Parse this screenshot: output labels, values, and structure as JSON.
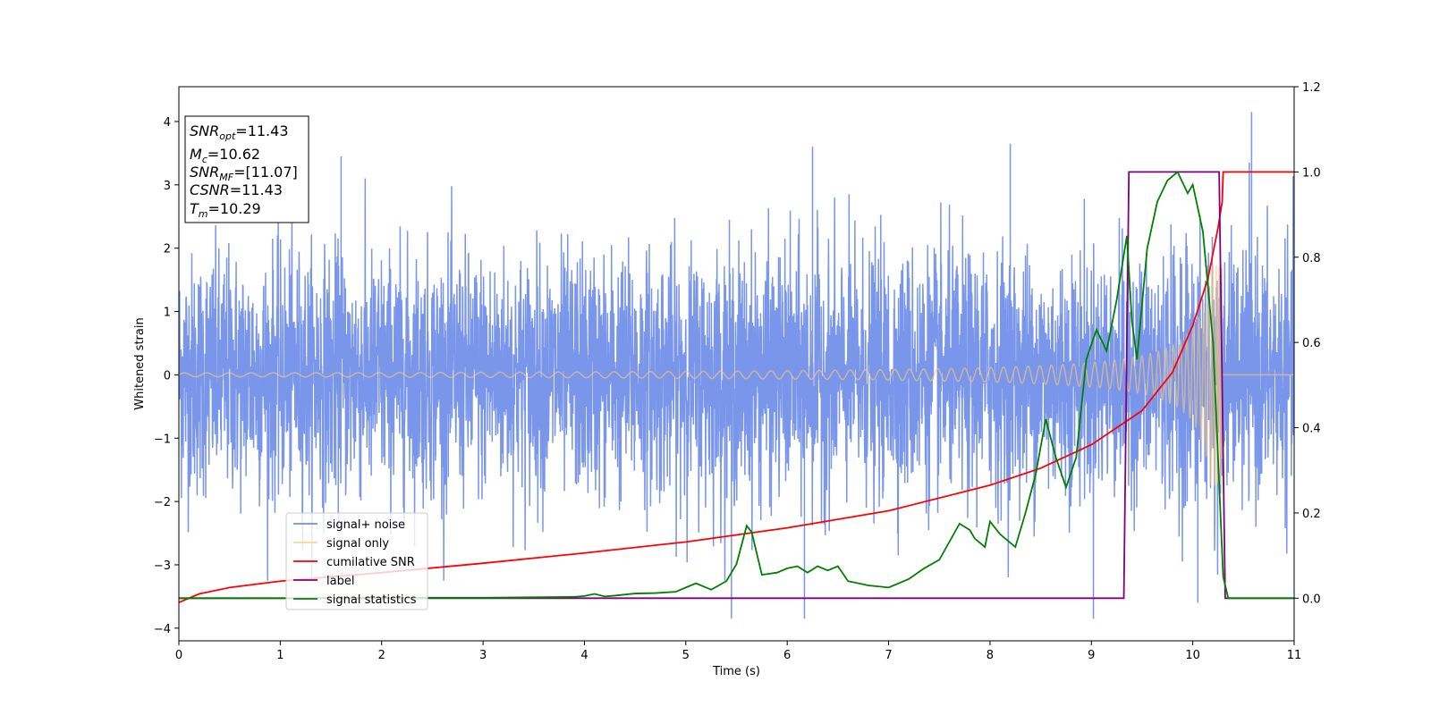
{
  "chart_data": {
    "type": "line",
    "xlabel": "Time (s)",
    "ylabel": "Whitened strain",
    "xlim": [
      0,
      11
    ],
    "ylim": [
      -4.2,
      4.55
    ],
    "y2lim": [
      -0.1,
      1.2
    ],
    "x_ticks": [
      "0",
      "1",
      "2",
      "3",
      "4",
      "5",
      "6",
      "7",
      "8",
      "9",
      "10",
      "11"
    ],
    "y_ticks": [
      {
        "value": 4,
        "label": "4"
      },
      {
        "value": 3,
        "label": "3"
      },
      {
        "value": 2,
        "label": "2"
      },
      {
        "value": 1,
        "label": "1"
      },
      {
        "value": 0,
        "label": "0"
      },
      {
        "value": -1,
        "label": "−1"
      },
      {
        "value": -2,
        "label": "−2"
      },
      {
        "value": -3,
        "label": "−3"
      },
      {
        "value": -4,
        "label": "−4"
      }
    ],
    "y2_ticks": [
      {
        "value": 1.2,
        "label": "1.2"
      },
      {
        "value": 1.0,
        "label": "1.0"
      },
      {
        "value": 0.8,
        "label": "0.8"
      },
      {
        "value": 0.6,
        "label": "0.6"
      },
      {
        "value": 0.4,
        "label": "0.4"
      },
      {
        "value": 0.2,
        "label": "0.2"
      },
      {
        "value": 0.0,
        "label": "0.0"
      }
    ],
    "annotation": [
      {
        "main": "SNR",
        "sub": "opt",
        "rest": "=11.43"
      },
      {
        "main": "M",
        "sub": "c",
        "rest": "=10.62"
      },
      {
        "main": "SNR",
        "sub": "MF",
        "rest": "=[11.07]"
      },
      {
        "main": "CSNR",
        "sub": "",
        "rest": "=11.43"
      },
      {
        "main": "T",
        "sub": "m",
        "rest": "=10.29"
      }
    ],
    "legend_position": "lower-left",
    "series": [
      {
        "name": "signal+ noise",
        "color": "#4169e1",
        "axis": "left",
        "description_stats": {
          "std": 0.95,
          "min": -3.85,
          "max": 4.15,
          "t_start": 0,
          "t_end": 11
        },
        "spikes": [
          {
            "x": 10.58,
            "y": 4.15
          },
          {
            "x": 10.05,
            "y": -3.6
          },
          {
            "x": 9.02,
            "y": -3.85
          },
          {
            "x": 5.45,
            "y": -3.85
          },
          {
            "x": 6.17,
            "y": -3.85
          },
          {
            "x": 8.2,
            "y": 3.65
          },
          {
            "x": 6.25,
            "y": 3.6
          },
          {
            "x": 1.6,
            "y": 3.45
          }
        ]
      },
      {
        "name": "signal only",
        "color": "#ffc870",
        "axis": "left",
        "chirp": {
          "t_merger": 10.29,
          "amp_start": 0.03,
          "amp_peak": 1.75,
          "freq_start": 12
        }
      },
      {
        "name": "cumilative SNR",
        "color": "#ff0000",
        "axis": "right",
        "points": [
          [
            0,
            -0.01
          ],
          [
            0.2,
            0.01
          ],
          [
            0.5,
            0.025
          ],
          [
            1,
            0.04
          ],
          [
            2,
            0.06
          ],
          [
            3,
            0.082
          ],
          [
            4,
            0.106
          ],
          [
            5,
            0.132
          ],
          [
            6,
            0.165
          ],
          [
            7,
            0.205
          ],
          [
            8,
            0.265
          ],
          [
            8.5,
            0.305
          ],
          [
            9,
            0.36
          ],
          [
            9.5,
            0.44
          ],
          [
            9.8,
            0.53
          ],
          [
            10,
            0.64
          ],
          [
            10.15,
            0.75
          ],
          [
            10.25,
            0.87
          ],
          [
            10.29,
            0.93
          ],
          [
            10.3,
            1.0
          ],
          [
            11,
            1.0
          ]
        ]
      },
      {
        "name": "label",
        "color": "#800080",
        "axis": "right",
        "points": [
          [
            0,
            0
          ],
          [
            9.32,
            0
          ],
          [
            9.37,
            1
          ],
          [
            10.26,
            1
          ],
          [
            10.32,
            0
          ],
          [
            11,
            0
          ]
        ]
      },
      {
        "name": "signal statistics",
        "color": "#008000",
        "axis": "right",
        "points": [
          [
            0,
            0
          ],
          [
            1,
            0
          ],
          [
            2,
            0.001
          ],
          [
            3,
            0.001
          ],
          [
            3.9,
            0.003
          ],
          [
            4.0,
            0.005
          ],
          [
            4.1,
            0.01
          ],
          [
            4.2,
            0.004
          ],
          [
            4.3,
            0.006
          ],
          [
            4.5,
            0.011
          ],
          [
            4.7,
            0.012
          ],
          [
            4.9,
            0.015
          ],
          [
            5.0,
            0.025
          ],
          [
            5.1,
            0.035
          ],
          [
            5.25,
            0.02
          ],
          [
            5.4,
            0.04
          ],
          [
            5.5,
            0.08
          ],
          [
            5.6,
            0.17
          ],
          [
            5.65,
            0.155
          ],
          [
            5.75,
            0.055
          ],
          [
            5.9,
            0.06
          ],
          [
            6.0,
            0.07
          ],
          [
            6.1,
            0.075
          ],
          [
            6.2,
            0.06
          ],
          [
            6.3,
            0.075
          ],
          [
            6.4,
            0.065
          ],
          [
            6.5,
            0.075
          ],
          [
            6.6,
            0.04
          ],
          [
            6.8,
            0.03
          ],
          [
            7.0,
            0.025
          ],
          [
            7.2,
            0.045
          ],
          [
            7.35,
            0.07
          ],
          [
            7.5,
            0.09
          ],
          [
            7.7,
            0.175
          ],
          [
            7.8,
            0.16
          ],
          [
            7.85,
            0.14
          ],
          [
            7.95,
            0.12
          ],
          [
            8.0,
            0.18
          ],
          [
            8.1,
            0.15
          ],
          [
            8.25,
            0.12
          ],
          [
            8.35,
            0.2
          ],
          [
            8.45,
            0.29
          ],
          [
            8.55,
            0.42
          ],
          [
            8.65,
            0.33
          ],
          [
            8.75,
            0.26
          ],
          [
            8.85,
            0.33
          ],
          [
            8.95,
            0.56
          ],
          [
            9.05,
            0.63
          ],
          [
            9.15,
            0.58
          ],
          [
            9.25,
            0.7
          ],
          [
            9.35,
            0.85
          ],
          [
            9.4,
            0.65
          ],
          [
            9.45,
            0.56
          ],
          [
            9.55,
            0.82
          ],
          [
            9.65,
            0.93
          ],
          [
            9.75,
            0.98
          ],
          [
            9.85,
            1.0
          ],
          [
            9.95,
            0.95
          ],
          [
            10.0,
            0.97
          ],
          [
            10.1,
            0.86
          ],
          [
            10.2,
            0.6
          ],
          [
            10.3,
            0.05
          ],
          [
            10.35,
            0.0
          ],
          [
            11,
            0.0
          ]
        ]
      }
    ]
  }
}
